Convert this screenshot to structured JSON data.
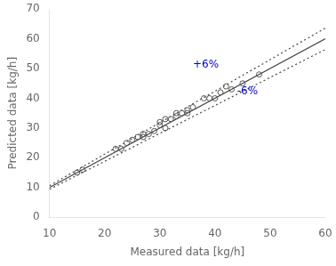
{
  "chart_data": {
    "type": "scatter",
    "title": "",
    "xlabel": "Measured data [kg/h]",
    "ylabel": "Predicted data [kg/h]",
    "xlim": [
      10,
      60
    ],
    "ylim": [
      0,
      70
    ],
    "xticks": [
      10,
      20,
      30,
      40,
      50,
      60
    ],
    "yticks": [
      0,
      10,
      20,
      30,
      40,
      50,
      60,
      70
    ],
    "grid": false,
    "series": [
      {
        "type": "scatter",
        "color": "#555555",
        "marker": "circle_open",
        "x": [
          15,
          16,
          22,
          23,
          24,
          25,
          26,
          27,
          27,
          28,
          29,
          30,
          30,
          31,
          31,
          32,
          33,
          33,
          34,
          35,
          35,
          36,
          38,
          39,
          40,
          41,
          42,
          43,
          45,
          48
        ],
        "values": [
          15,
          16,
          23,
          23,
          25,
          26,
          27,
          27,
          28,
          28,
          29,
          31,
          32,
          30,
          33,
          33,
          34,
          35,
          35,
          36,
          35,
          37,
          40,
          40,
          40,
          42,
          44,
          43,
          45,
          48
        ]
      },
      {
        "type": "line",
        "color": "#444444",
        "line_style": "solid",
        "x": [
          10,
          60
        ],
        "values": [
          10,
          60
        ]
      },
      {
        "type": "line",
        "color": "#444444",
        "line_style": "dotted",
        "x": [
          10,
          60
        ],
        "values": [
          10.6,
          63.6
        ]
      },
      {
        "type": "line",
        "color": "#444444",
        "line_style": "dotted",
        "x": [
          10,
          60
        ],
        "values": [
          9.4,
          56.4
        ]
      }
    ],
    "annotations": [
      {
        "text": "+6%",
        "x": 36,
        "y": 49.5,
        "color": "#0000cc"
      },
      {
        "text": "-6%",
        "x": 44,
        "y": 40.5,
        "color": "#0000cc"
      }
    ]
  }
}
